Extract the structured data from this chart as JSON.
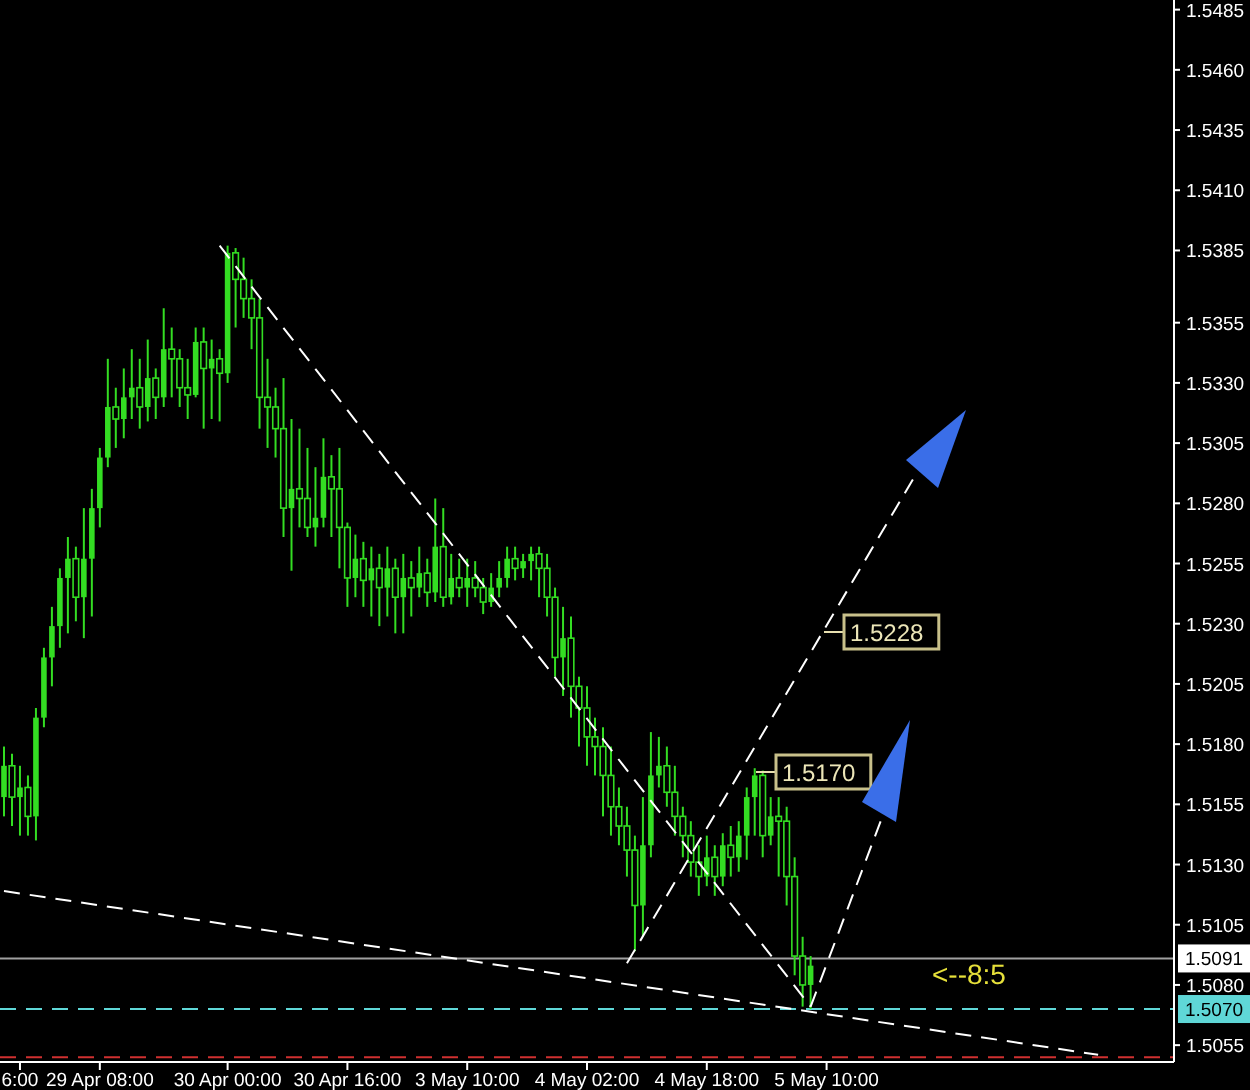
{
  "chart_data": {
    "type": "candlestick",
    "categories": [
      null,
      null,
      "6:00",
      null,
      null,
      null,
      null,
      null,
      null,
      null,
      null,
      null,
      "29 Apr 08:00",
      null,
      null,
      null,
      null,
      null,
      null,
      null,
      null,
      null,
      null,
      null,
      null,
      null,
      null,
      null,
      "30 Apr 00:00",
      null,
      null,
      null,
      null,
      null,
      null,
      null,
      null,
      null,
      null,
      null,
      null,
      null,
      null,
      "30 Apr 16:00",
      null,
      null,
      null,
      null,
      null,
      null,
      null,
      null,
      null,
      null,
      null,
      null,
      null,
      null,
      "3 May 10:00",
      null,
      null,
      null,
      null,
      null,
      null,
      null,
      null,
      null,
      null,
      null,
      null,
      null,
      null,
      "4 May 02:00",
      null,
      null,
      null,
      null,
      null,
      null,
      null,
      null,
      null,
      null,
      null,
      null,
      null,
      null,
      "4 May 18:00",
      null,
      null,
      null,
      null,
      null,
      null,
      null,
      null,
      null,
      null,
      null,
      null,
      null,
      null,
      "5 May 10:00",
      null,
      null,
      null,
      null,
      null,
      null,
      null,
      null,
      null,
      null,
      null,
      null,
      null,
      null,
      null,
      null,
      null,
      null,
      null,
      null,
      null,
      null,
      null,
      null,
      null,
      null,
      null,
      null,
      null,
      null,
      null,
      null,
      null,
      null,
      null,
      null,
      null,
      null,
      null,
      null,
      null,
      null,
      null
    ],
    "ylim": [
      1.5048,
      1.5489
    ],
    "yticks": [
      1.5485,
      {
        "value": 1.546,
        "label": "1.5460"
      },
      1.5435,
      {
        "value": 1.541,
        "label": "1.5410"
      },
      1.5385,
      1.5355,
      {
        "value": 1.533,
        "label": "1.5330"
      },
      1.5305,
      {
        "value": 1.528,
        "label": "1.5280"
      },
      1.5255,
      {
        "value": 1.523,
        "label": "1.5230"
      },
      1.5205,
      {
        "value": 1.518,
        "label": "1.5180"
      },
      1.5155,
      {
        "value": 1.513,
        "label": "1.5130"
      },
      1.5105,
      {
        "value": 1.508,
        "label": "1.5080"
      },
      1.5055
    ],
    "series": [
      {
        "color": "#33dd22",
        "ohlc": [
          [
            1.5158,
            1.5179,
            1.515,
            1.5171
          ],
          [
            1.5171,
            1.5176,
            1.5146,
            1.5158
          ],
          [
            1.5158,
            1.5171,
            1.5142,
            1.5162
          ],
          [
            1.5162,
            1.5167,
            1.5142,
            1.515
          ],
          [
            1.515,
            1.5195,
            1.514,
            1.5191
          ],
          [
            1.5191,
            1.522,
            1.5187,
            1.5216
          ],
          [
            1.5216,
            1.5237,
            1.5204,
            1.5229
          ],
          [
            1.5229,
            1.5253,
            1.522,
            1.5249
          ],
          [
            1.5249,
            1.5266,
            1.5226,
            1.5257
          ],
          [
            1.5257,
            1.5262,
            1.5231,
            1.5241
          ],
          [
            1.5241,
            1.5278,
            1.5224,
            1.5257
          ],
          [
            1.5257,
            1.5286,
            1.5233,
            1.5278
          ],
          [
            1.5278,
            1.5303,
            1.527,
            1.5299
          ],
          [
            1.5299,
            1.534,
            1.5295,
            1.532
          ],
          [
            1.532,
            1.5328,
            1.5303,
            1.5315
          ],
          [
            1.5315,
            1.5336,
            1.5307,
            1.5324
          ],
          [
            1.5324,
            1.5344,
            1.5315,
            1.5328
          ],
          [
            1.5328,
            1.534,
            1.5311,
            1.532
          ],
          [
            1.532,
            1.5348,
            1.5314,
            1.5332
          ],
          [
            1.5332,
            1.5336,
            1.5315,
            1.5324
          ],
          [
            1.5324,
            1.5361,
            1.532,
            1.5344
          ],
          [
            1.5344,
            1.5353,
            1.5324,
            1.534
          ],
          [
            1.534,
            1.5344,
            1.532,
            1.5328
          ],
          [
            1.5328,
            1.534,
            1.5315,
            1.5325
          ],
          [
            1.5325,
            1.5353,
            1.5324,
            1.5347
          ],
          [
            1.5347,
            1.5353,
            1.5311,
            1.5336
          ],
          [
            1.5336,
            1.5348,
            1.5315,
            1.534
          ],
          [
            1.534,
            1.5344,
            1.5314,
            1.5334
          ],
          [
            1.5334,
            1.5387,
            1.533,
            1.5384
          ],
          [
            1.5384,
            1.5386,
            1.5353,
            1.5373
          ],
          [
            1.5373,
            1.5382,
            1.5357,
            1.5365
          ],
          [
            1.5365,
            1.5373,
            1.5344,
            1.5357
          ],
          [
            1.5357,
            1.5365,
            1.5311,
            1.5324
          ],
          [
            1.5324,
            1.534,
            1.5303,
            1.532
          ],
          [
            1.532,
            1.5328,
            1.5299,
            1.5311
          ],
          [
            1.5311,
            1.5332,
            1.5266,
            1.5278
          ],
          [
            1.5278,
            1.5315,
            1.5252,
            1.5286
          ],
          [
            1.5286,
            1.5311,
            1.527,
            1.5282
          ],
          [
            1.5282,
            1.5303,
            1.5266,
            1.527
          ],
          [
            1.527,
            1.5295,
            1.5262,
            1.5274
          ],
          [
            1.5274,
            1.5307,
            1.527,
            1.5291
          ],
          [
            1.5291,
            1.53,
            1.5266,
            1.5286
          ],
          [
            1.5286,
            1.5303,
            1.5253,
            1.527
          ],
          [
            1.527,
            1.5272,
            1.5237,
            1.5249
          ],
          [
            1.5249,
            1.5267,
            1.5241,
            1.5257
          ],
          [
            1.5257,
            1.5264,
            1.5237,
            1.5248
          ],
          [
            1.5248,
            1.5262,
            1.5233,
            1.5253
          ],
          [
            1.5253,
            1.5259,
            1.5229,
            1.5245
          ],
          [
            1.5245,
            1.5262,
            1.5233,
            1.5253
          ],
          [
            1.5253,
            1.5257,
            1.5226,
            1.5241
          ],
          [
            1.5241,
            1.5259,
            1.5226,
            1.5249
          ],
          [
            1.5249,
            1.5256,
            1.5233,
            1.5245
          ],
          [
            1.5245,
            1.5262,
            1.5241,
            1.5251
          ],
          [
            1.5251,
            1.5257,
            1.5237,
            1.5243
          ],
          [
            1.5243,
            1.5282,
            1.5239,
            1.5262
          ],
          [
            1.5262,
            1.5278,
            1.5237,
            1.5241
          ],
          [
            1.5241,
            1.5259,
            1.5238,
            1.5249
          ],
          [
            1.5249,
            1.5257,
            1.5241,
            1.5245
          ],
          [
            1.5245,
            1.5257,
            1.5237,
            1.5249
          ],
          [
            1.5249,
            1.5256,
            1.5241,
            1.5245
          ],
          [
            1.5245,
            1.5249,
            1.5234,
            1.5239
          ],
          [
            1.5239,
            1.5251,
            1.5237,
            1.5245
          ],
          [
            1.5245,
            1.5256,
            1.5241,
            1.5249
          ],
          [
            1.5249,
            1.5262,
            1.5245,
            1.5257
          ],
          [
            1.5257,
            1.5262,
            1.5248,
            1.5253
          ],
          [
            1.5253,
            1.5259,
            1.5249,
            1.5256
          ],
          [
            1.5256,
            1.5262,
            1.5248,
            1.5259
          ],
          [
            1.5259,
            1.5262,
            1.5241,
            1.5253
          ],
          [
            1.5253,
            1.5259,
            1.5233,
            1.5241
          ],
          [
            1.5241,
            1.5245,
            1.5208,
            1.5216
          ],
          [
            1.5216,
            1.5237,
            1.52,
            1.5224
          ],
          [
            1.5224,
            1.5233,
            1.5191,
            1.5204
          ],
          [
            1.5204,
            1.5208,
            1.5179,
            1.5195
          ],
          [
            1.5195,
            1.5204,
            1.5171,
            1.5183
          ],
          [
            1.5183,
            1.5191,
            1.5167,
            1.5179
          ],
          [
            1.5179,
            1.5187,
            1.515,
            1.5167
          ],
          [
            1.5167,
            1.5179,
            1.5142,
            1.5154
          ],
          [
            1.5154,
            1.5162,
            1.5138,
            1.5146
          ],
          [
            1.5146,
            1.5154,
            1.5125,
            1.5136
          ],
          [
            1.5136,
            1.5142,
            1.5094,
            1.5113
          ],
          [
            1.5113,
            1.5158,
            1.51,
            1.5138
          ],
          [
            1.5138,
            1.5185,
            1.5133,
            1.5167
          ],
          [
            1.5167,
            1.5183,
            1.5162,
            1.5171
          ],
          [
            1.5171,
            1.5179,
            1.5154,
            1.516
          ],
          [
            1.516,
            1.5171,
            1.5142,
            1.515
          ],
          [
            1.515,
            1.5154,
            1.5133,
            1.5142
          ],
          [
            1.5142,
            1.5148,
            1.5125,
            1.5131
          ],
          [
            1.5131,
            1.5138,
            1.5117,
            1.5125
          ],
          [
            1.5125,
            1.5142,
            1.5121,
            1.5133
          ],
          [
            1.5133,
            1.5138,
            1.5117,
            1.5125
          ],
          [
            1.5125,
            1.5143,
            1.5121,
            1.5138
          ],
          [
            1.5138,
            1.5146,
            1.5125,
            1.5133
          ],
          [
            1.5133,
            1.5148,
            1.5127,
            1.5142
          ],
          [
            1.5142,
            1.5162,
            1.5132,
            1.5158
          ],
          [
            1.5158,
            1.517,
            1.5142,
            1.5167
          ],
          [
            1.5167,
            1.5169,
            1.5133,
            1.5142
          ],
          [
            1.5142,
            1.5158,
            1.5138,
            1.515
          ],
          [
            1.515,
            1.5158,
            1.5125,
            1.5148
          ],
          [
            1.5148,
            1.5154,
            1.5113,
            1.5125
          ],
          [
            1.5125,
            1.5133,
            1.5084,
            1.5092
          ],
          [
            1.5092,
            1.51,
            1.5071,
            1.508
          ],
          [
            1.508,
            1.5092,
            1.507,
            1.5088
          ],
          null,
          null,
          null,
          null,
          null,
          null,
          null,
          null,
          null,
          null,
          null,
          null,
          null,
          null,
          null,
          null,
          null,
          null,
          null,
          null,
          null,
          null,
          null,
          null,
          null,
          null,
          null,
          null,
          null,
          null,
          null,
          null,
          null,
          null,
          null,
          null,
          null,
          null,
          null,
          null,
          null,
          null,
          null,
          null,
          null
        ]
      },
      {
        "type": "line",
        "color": "#ffffff",
        "line_style": "dashed",
        "values": [
          null,
          null,
          null,
          null,
          null,
          null,
          null,
          null,
          null,
          null,
          null,
          null,
          null,
          null,
          null,
          null,
          null,
          null,
          null,
          null,
          null,
          null,
          null,
          null,
          null,
          null,
          null,
          1.5387,
          null,
          null,
          null,
          null,
          null,
          null,
          null,
          null,
          null,
          null,
          null,
          null,
          null,
          null,
          null,
          null,
          null,
          null,
          null,
          null,
          null,
          null,
          null,
          null,
          null,
          null,
          null,
          null,
          null,
          null,
          null,
          null,
          null,
          null,
          null,
          null,
          null,
          null,
          null,
          null,
          null,
          null,
          null,
          null,
          null,
          null,
          null,
          null,
          null,
          null,
          null,
          null,
          null,
          null,
          null,
          null,
          null,
          null,
          null,
          null,
          null,
          null,
          null,
          null,
          null,
          null,
          null,
          null,
          null,
          null,
          null,
          null,
          null,
          1.5071,
          null,
          null,
          null,
          null,
          null,
          null,
          null,
          null,
          null,
          null,
          null,
          null,
          null,
          null,
          null,
          null,
          null,
          null,
          null,
          null,
          null,
          null,
          null,
          null,
          null,
          null,
          null,
          null,
          null,
          null,
          null,
          null,
          null,
          null,
          null,
          null,
          null,
          null,
          null,
          null,
          null,
          null,
          null,
          null,
          null
        ]
      },
      {
        "type": "line",
        "color": "#ffffff",
        "line_style": "dashed",
        "values": [
          1.5119,
          null,
          null,
          null,
          null,
          null,
          null,
          null,
          null,
          null,
          null,
          null,
          null,
          null,
          null,
          null,
          null,
          null,
          null,
          null,
          null,
          null,
          null,
          null,
          null,
          null,
          null,
          null,
          null,
          null,
          null,
          null,
          null,
          null,
          null,
          null,
          null,
          null,
          null,
          null,
          null,
          null,
          null,
          null,
          null,
          null,
          null,
          null,
          null,
          null,
          null,
          null,
          null,
          null,
          null,
          null,
          null,
          null,
          null,
          null,
          null,
          null,
          null,
          null,
          null,
          null,
          null,
          null,
          null,
          null,
          null,
          null,
          null,
          null,
          null,
          null,
          null,
          null,
          null,
          null,
          null,
          null,
          null,
          null,
          null,
          null,
          null,
          null,
          null,
          null,
          null,
          null,
          null,
          null,
          null,
          null,
          null,
          null,
          null,
          null,
          null,
          null,
          null,
          null,
          null,
          null,
          null,
          null,
          null,
          null,
          null,
          null,
          null,
          null,
          null,
          null,
          null,
          null,
          null,
          null,
          null,
          null,
          null,
          null,
          null,
          null,
          null,
          null,
          null,
          null,
          null,
          null,
          null,
          null,
          null,
          null,
          null,
          1.5051,
          null,
          null,
          null,
          null,
          null,
          null,
          null,
          null,
          null
        ]
      },
      {
        "type": "line",
        "color": "#ffffff",
        "line_style": "dashed",
        "values": [
          null,
          null,
          null,
          null,
          null,
          null,
          null,
          null,
          null,
          null,
          null,
          null,
          null,
          null,
          null,
          null,
          null,
          null,
          null,
          null,
          null,
          null,
          null,
          null,
          null,
          null,
          null,
          null,
          null,
          null,
          null,
          null,
          null,
          null,
          null,
          null,
          null,
          null,
          null,
          null,
          null,
          null,
          null,
          null,
          null,
          null,
          null,
          null,
          null,
          null,
          null,
          null,
          null,
          null,
          null,
          null,
          null,
          null,
          null,
          null,
          null,
          null,
          null,
          null,
          null,
          null,
          null,
          null,
          null,
          null,
          null,
          null,
          null,
          null,
          null,
          null,
          null,
          null,
          1.5089,
          null,
          null,
          null,
          null,
          null,
          null,
          null,
          null,
          null,
          null,
          null,
          null,
          null,
          null,
          null,
          null,
          null,
          null,
          null,
          null,
          null,
          null,
          null,
          null,
          null,
          null,
          null,
          null,
          null,
          null,
          null,
          null,
          null,
          null,
          null,
          1.5291,
          null,
          null,
          null,
          null,
          null,
          null,
          null,
          null,
          null,
          null,
          null,
          null,
          null,
          null,
          null,
          null,
          null,
          null,
          null,
          null,
          null,
          null,
          null,
          null,
          null,
          null,
          null,
          null,
          null,
          null,
          null,
          null
        ]
      },
      {
        "type": "line",
        "color": "#ffffff",
        "line_style": "dashed",
        "values": [
          null,
          null,
          null,
          null,
          null,
          null,
          null,
          null,
          null,
          null,
          null,
          null,
          null,
          null,
          null,
          null,
          null,
          null,
          null,
          null,
          null,
          null,
          null,
          null,
          null,
          null,
          null,
          null,
          null,
          null,
          null,
          null,
          null,
          null,
          null,
          null,
          null,
          null,
          null,
          null,
          null,
          null,
          null,
          null,
          null,
          null,
          null,
          null,
          null,
          null,
          null,
          null,
          null,
          null,
          null,
          null,
          null,
          null,
          null,
          null,
          null,
          null,
          null,
          null,
          null,
          null,
          null,
          null,
          null,
          null,
          null,
          null,
          null,
          null,
          null,
          null,
          null,
          null,
          null,
          null,
          null,
          null,
          null,
          null,
          null,
          null,
          null,
          null,
          null,
          null,
          null,
          null,
          null,
          null,
          null,
          null,
          null,
          null,
          null,
          null,
          null,
          1.5071,
          null,
          null,
          null,
          null,
          null,
          null,
          null,
          null,
          1.515,
          null,
          null,
          null,
          null,
          null,
          null,
          null,
          null,
          null,
          null,
          null,
          null,
          null,
          null,
          null,
          null,
          null,
          null,
          null,
          null,
          null,
          null,
          null,
          null,
          null,
          null,
          null,
          null,
          null,
          null,
          null,
          null,
          null,
          null,
          null,
          null
        ]
      }
    ],
    "ref_lines": [
      {
        "axis": "y",
        "value": 1.5091,
        "label": "1.5091",
        "color": "#a0a0a0",
        "line_style": "solid"
      },
      {
        "axis": "y",
        "value": 1.507,
        "label": "1.5070",
        "color": "#5fd7d7",
        "line_style": "dashed"
      },
      {
        "axis": "y",
        "value": 1.505,
        "color": "#d03030",
        "line_style": "dashed"
      }
    ],
    "annotations": [
      "1.5228",
      "1.5170",
      "<--8:5"
    ]
  }
}
